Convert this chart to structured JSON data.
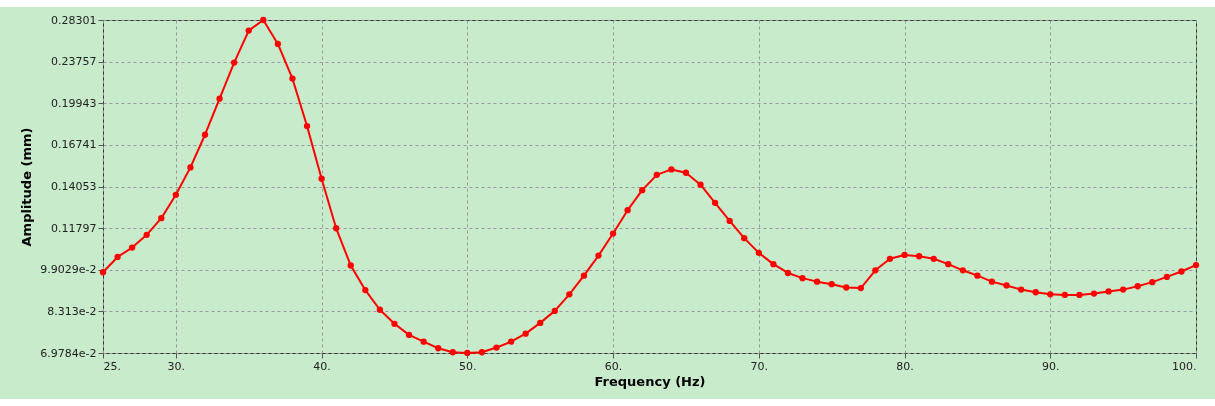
{
  "chart_data": {
    "type": "line",
    "xlabel": "Frequency (Hz)",
    "ylabel": "Amplitude (mm)",
    "x": [
      25,
      26,
      27,
      28,
      29,
      30,
      31,
      32,
      33,
      34,
      35,
      36,
      37,
      38,
      39,
      40,
      41,
      42,
      43,
      44,
      45,
      46,
      47,
      48,
      49,
      50,
      51,
      52,
      53,
      54,
      55,
      56,
      57,
      58,
      59,
      60,
      61,
      62,
      63,
      64,
      65,
      66,
      67,
      68,
      69,
      70,
      71,
      72,
      73,
      74,
      75,
      76,
      77,
      78,
      79,
      80,
      81,
      82,
      83,
      84,
      85,
      86,
      87,
      88,
      89,
      90,
      91,
      92,
      93,
      94,
      95,
      96,
      97,
      98,
      99,
      100
    ],
    "series": [
      {
        "color": "#ff0000",
        "values": [
          0.098,
          0.1045,
          0.1087,
          0.1147,
          0.123,
          0.1357,
          0.1523,
          0.1747,
          0.2033,
          0.2366,
          0.2707,
          0.283,
          0.2559,
          0.2212,
          0.1812,
          0.1452,
          0.1179,
          0.1008,
          0.0909,
          0.0837,
          0.0789,
          0.0753,
          0.0732,
          0.0712,
          0.07,
          0.0698,
          0.07,
          0.0714,
          0.0732,
          0.0757,
          0.0792,
          0.0833,
          0.0893,
          0.0966,
          0.1051,
          0.1153,
          0.1272,
          0.1384,
          0.1476,
          0.151,
          0.1489,
          0.1416,
          0.1312,
          0.1216,
          0.1131,
          0.1063,
          0.1014,
          0.0977,
          0.0956,
          0.0942,
          0.0932,
          0.0919,
          0.0917,
          0.0988,
          0.1037,
          0.1054,
          0.1048,
          0.1037,
          0.1014,
          0.0988,
          0.0966,
          0.0942,
          0.0927,
          0.0911,
          0.0901,
          0.0893,
          0.0891,
          0.0891,
          0.0896,
          0.0904,
          0.0911,
          0.0924,
          0.094,
          0.0961,
          0.0983,
          0.101
        ]
      }
    ],
    "xlim": [
      25,
      100
    ],
    "xticks": [
      {
        "value": 25,
        "label": "25."
      },
      {
        "value": 30,
        "label": "30."
      },
      {
        "value": 40,
        "label": "40."
      },
      {
        "value": 50,
        "label": "50."
      },
      {
        "value": 60,
        "label": "60."
      },
      {
        "value": 70,
        "label": "70."
      },
      {
        "value": 80,
        "label": "80."
      },
      {
        "value": 90,
        "label": "90."
      },
      {
        "value": 100,
        "label": "100."
      }
    ],
    "ylim": [
      0.069784,
      0.28301
    ],
    "yticks": [
      {
        "value": 0.069784,
        "label": "6.9784e-2"
      },
      {
        "value": 0.08313,
        "label": "8.313e-2"
      },
      {
        "value": 0.099029,
        "label": "9.9029e-2"
      },
      0.11797,
      0.14053,
      0.16741,
      0.19943,
      0.23757,
      0.28301
    ],
    "log": true,
    "grid": true,
    "marker": "circle",
    "line_style": "solid"
  }
}
